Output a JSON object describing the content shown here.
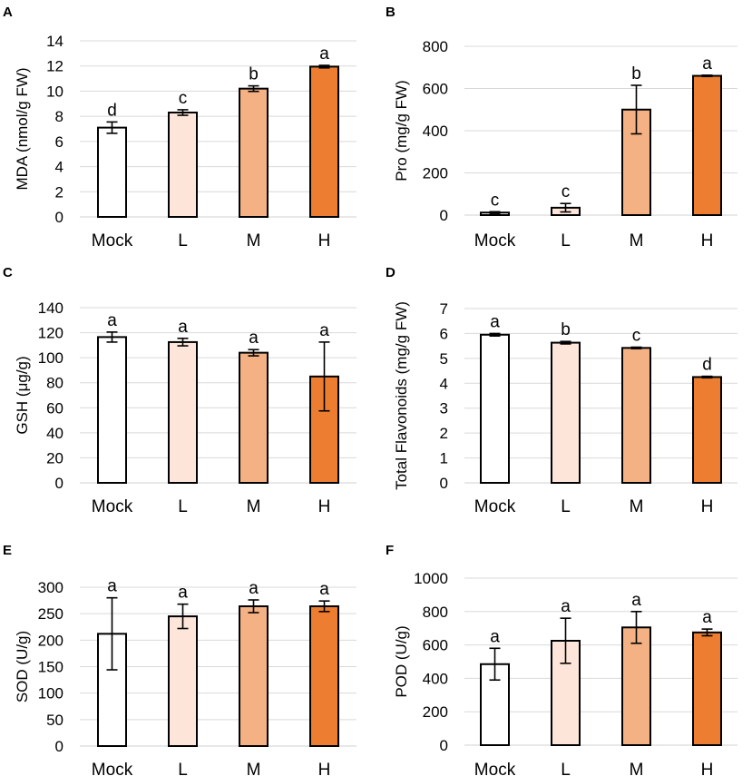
{
  "colors": [
    "#ffffff",
    "#fde6d9",
    "#f4b183",
    "#ed7d31"
  ],
  "chart_data": [
    {
      "id": "A",
      "type": "bar",
      "panel_label": "A",
      "categories": [
        "Mock",
        "L",
        "M",
        "H"
      ],
      "values": [
        7.1,
        8.3,
        10.2,
        11.95
      ],
      "errors": [
        0.45,
        0.22,
        0.22,
        0.1
      ],
      "letters": [
        "d",
        "c",
        "b",
        "a"
      ],
      "ylabel": "MDA (nmol/g FW)",
      "ylim": [
        0,
        14
      ],
      "yticks": [
        0,
        2,
        4,
        6,
        8,
        10,
        12,
        14
      ],
      "ytick_labels": [
        "0",
        "2",
        "4",
        "6",
        "8",
        "10",
        "12",
        "14"
      ],
      "grid": true
    },
    {
      "id": "B",
      "type": "bar",
      "panel_label": "B",
      "categories": [
        "Mock",
        "L",
        "M",
        "H"
      ],
      "values": [
        12,
        35,
        500,
        660
      ],
      "errors": [
        4,
        20,
        115,
        3
      ],
      "letters": [
        "c",
        "c",
        "b",
        "a"
      ],
      "ylabel": "Pro (mg/g FW)",
      "ylim": [
        0,
        800
      ],
      "yticks": [
        0,
        200,
        400,
        600,
        800
      ],
      "ytick_labels": [
        "0",
        "200",
        "400",
        "600",
        "800"
      ],
      "grid": true
    },
    {
      "id": "C",
      "type": "bar",
      "panel_label": "C",
      "categories": [
        "Mock",
        "L",
        "M",
        "H"
      ],
      "values": [
        116.5,
        112.5,
        104,
        85
      ],
      "errors": [
        4,
        3,
        2.5,
        27.5
      ],
      "letters": [
        "a",
        "a",
        "a",
        "a"
      ],
      "ylabel": "GSH (μg/g)",
      "ylim": [
        0,
        140
      ],
      "yticks": [
        0,
        20,
        40,
        60,
        80,
        100,
        120,
        140
      ],
      "ytick_labels": [
        "0",
        "20",
        "40",
        "60",
        "80",
        "100",
        "120",
        "140"
      ],
      "grid": true
    },
    {
      "id": "D",
      "type": "bar",
      "panel_label": "D",
      "categories": [
        "Mock",
        "L",
        "M",
        "H"
      ],
      "values": [
        5.95,
        5.63,
        5.42,
        4.25
      ],
      "errors": [
        0.05,
        0.05,
        0.03,
        0.03
      ],
      "letters": [
        "a",
        "b",
        "c",
        "d"
      ],
      "ylabel": "Total Flavonoids (mg/g FW)",
      "ylim": [
        0,
        7
      ],
      "yticks": [
        0,
        1,
        2,
        3,
        4,
        5,
        6,
        7
      ],
      "ytick_labels": [
        "0",
        "1",
        "2",
        "3",
        "4",
        "5",
        "6",
        "7"
      ],
      "grid": true
    },
    {
      "id": "E",
      "type": "bar",
      "panel_label": "E",
      "categories": [
        "Mock",
        "L",
        "M",
        "H"
      ],
      "values": [
        212,
        245,
        264,
        264
      ],
      "errors": [
        68,
        23,
        12,
        10
      ],
      "letters": [
        "a",
        "a",
        "a",
        "a"
      ],
      "ylabel": "SOD (U/g)",
      "ylim": [
        0,
        300
      ],
      "yticks": [
        0,
        50,
        100,
        150,
        200,
        250,
        300
      ],
      "ytick_labels": [
        "0",
        "50",
        "100",
        "150",
        "200",
        "250",
        "300"
      ],
      "grid": true
    },
    {
      "id": "F",
      "type": "bar",
      "panel_label": "F",
      "categories": [
        "Mock",
        "L",
        "M",
        "H"
      ],
      "values": [
        485,
        625,
        705,
        675
      ],
      "errors": [
        95,
        135,
        95,
        20
      ],
      "letters": [
        "a",
        "a",
        "a",
        "a"
      ],
      "ylabel": "POD (U/g)",
      "ylim": [
        0,
        1000
      ],
      "yticks": [
        0,
        200,
        400,
        600,
        800,
        1000
      ],
      "ytick_labels": [
        "0",
        "200",
        "400",
        "600",
        "800",
        "1000"
      ],
      "grid": true
    }
  ]
}
